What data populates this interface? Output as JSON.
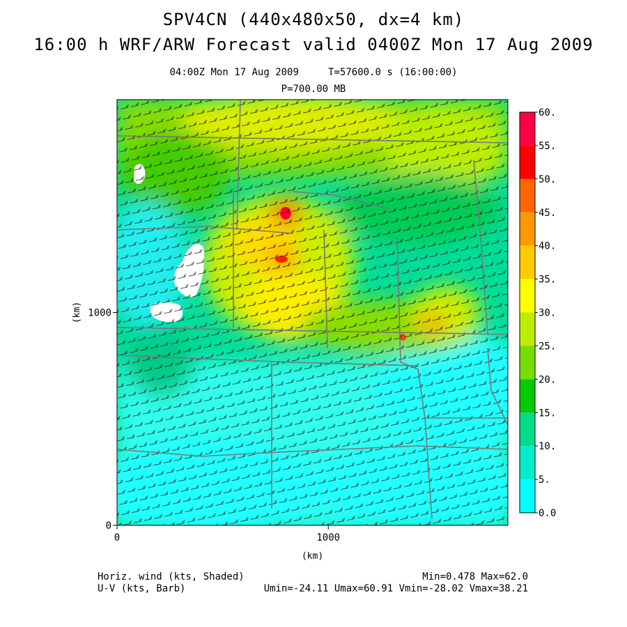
{
  "header": {
    "title_line1": "SPV4CN (440x480x50, dx=4 km)",
    "title_line2": "16:00 h WRF/ARW Forecast valid 0400Z Mon 17 Aug 2009",
    "valid_line": "04:00Z Mon 17 Aug 2009     T=57600.0 s (16:00:00)",
    "level_line": "P=700.00 MB"
  },
  "chart_data": {
    "type": "heatmap",
    "xlabel": "(km)",
    "ylabel": "(km)",
    "xlim": [
      0,
      1850
    ],
    "ylim": [
      0,
      2000
    ],
    "x_ticks": [
      0,
      1000
    ],
    "y_ticks": [
      0,
      1000
    ],
    "colorbar": {
      "levels": [
        0,
        5,
        10,
        15,
        20,
        25,
        30,
        35,
        40,
        45,
        50,
        55,
        60
      ],
      "labels": [
        "0.0",
        "5.",
        "10.",
        "15.",
        "20.",
        "25.",
        "30.",
        "35.",
        "40.",
        "45.",
        "50.",
        "55.",
        "60."
      ],
      "colors": [
        "#00ffff",
        "#00eecc",
        "#00dd88",
        "#00cc00",
        "#77dd00",
        "#bbee00",
        "#ffff00",
        "#ffcc00",
        "#ff9900",
        "#ff6600",
        "#ff0000",
        "#ff0044",
        "#ff0066"
      ]
    },
    "field_label": "Horiz. wind (kts, Shaded)",
    "vector_label": "U-V (kts, Barb)",
    "stats_line1": "Min=0.478 Max=62.0",
    "stats_line2": "Umin=-24.11 Umax=60.91 Vmin=-28.02 Vmax=38.21"
  }
}
